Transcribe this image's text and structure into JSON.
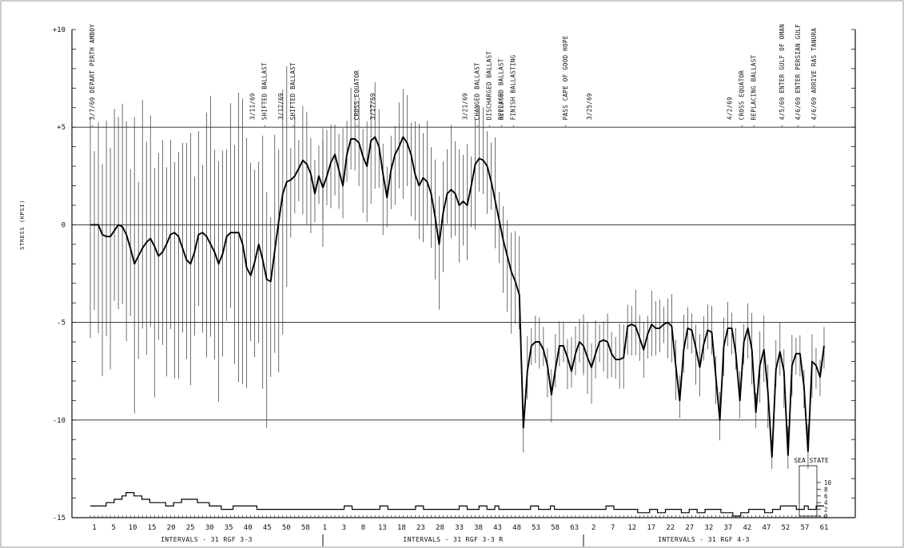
{
  "chart_data": {
    "type": "line",
    "title": "",
    "ylabel": "STRESS (KPSI)",
    "ylim": [
      -15,
      10
    ],
    "y_ticks": [
      {
        "value": 10,
        "label": "+10"
      },
      {
        "value": 5,
        "label": "+5"
      },
      {
        "value": 0,
        "label": "0"
      },
      {
        "value": -5,
        "label": "-5"
      },
      {
        "value": -10,
        "label": "-10"
      },
      {
        "value": -15,
        "label": "-15"
      }
    ],
    "reference_lines": [
      5,
      0,
      -5,
      -10
    ],
    "x_tick_labels": [
      "1",
      "5",
      "10",
      "15",
      "20",
      "25",
      "30",
      "35",
      "40",
      "45",
      "50",
      "58",
      "1",
      "3",
      "8",
      "13",
      "18",
      "23",
      "28",
      "33",
      "38",
      "43",
      "48",
      "53",
      "58",
      "63",
      "2",
      "7",
      "12",
      "17",
      "22",
      "27",
      "32",
      "37",
      "42",
      "47",
      "52",
      "57",
      "61"
    ],
    "x_sections": [
      {
        "label": "INTERVALS - 31 RGF 3-3",
        "start": 0,
        "end": 58
      },
      {
        "label": "INTERVALS - 31 RGF 3-3 R",
        "start": 58,
        "end": 123
      },
      {
        "label": "INTERVALS - 31 RGF 4-3",
        "start": 123,
        "end": 183
      }
    ],
    "series": [
      {
        "mean": [
          [
            0,
            0
          ],
          [
            1,
            0
          ],
          [
            2,
            0
          ],
          [
            3,
            -0.5
          ],
          [
            4,
            -0.6
          ],
          [
            5,
            -0.6
          ],
          [
            6,
            -0.3
          ],
          [
            7,
            0
          ],
          [
            8,
            -0.1
          ],
          [
            9,
            -0.5
          ],
          [
            10,
            -1.2
          ],
          [
            11,
            -2.0
          ],
          [
            12,
            -1.6
          ],
          [
            13,
            -1.2
          ],
          [
            14,
            -0.9
          ],
          [
            15,
            -0.7
          ],
          [
            16,
            -1.1
          ],
          [
            17,
            -1.6
          ],
          [
            18,
            -1.4
          ],
          [
            19,
            -1.0
          ],
          [
            20,
            -0.5
          ],
          [
            21,
            -0.4
          ],
          [
            22,
            -0.6
          ],
          [
            23,
            -1.2
          ],
          [
            24,
            -1.8
          ],
          [
            25,
            -2.0
          ],
          [
            26,
            -1.4
          ],
          [
            27,
            -0.5
          ],
          [
            28,
            -0.4
          ],
          [
            29,
            -0.6
          ],
          [
            30,
            -1.0
          ],
          [
            31,
            -1.4
          ],
          [
            32,
            -2.0
          ],
          [
            33,
            -1.5
          ],
          [
            34,
            -0.6
          ],
          [
            35,
            -0.4
          ],
          [
            36,
            -0.4
          ],
          [
            37,
            -0.4
          ],
          [
            38,
            -1.0
          ],
          [
            39,
            -2.2
          ],
          [
            40,
            -2.6
          ],
          [
            41,
            -1.9
          ],
          [
            42,
            -1.0
          ],
          [
            43,
            -1.8
          ],
          [
            44,
            -2.8
          ],
          [
            45,
            -2.9
          ],
          [
            46,
            -1.3
          ],
          [
            47,
            0.2
          ],
          [
            48,
            1.6
          ],
          [
            49,
            2.2
          ],
          [
            50,
            2.3
          ],
          [
            51,
            2.5
          ],
          [
            52,
            2.9
          ],
          [
            53,
            3.3
          ],
          [
            54,
            3.1
          ],
          [
            55,
            2.6
          ],
          [
            56,
            1.6
          ],
          [
            57,
            2.5
          ],
          [
            58,
            1.9
          ]
        ]
      },
      {
        "mean": [
          [
            58,
            1.9
          ],
          [
            59,
            2.5
          ],
          [
            60,
            3.2
          ],
          [
            61,
            3.6
          ],
          [
            62,
            2.8
          ],
          [
            63,
            2.0
          ],
          [
            64,
            3.6
          ],
          [
            65,
            4.4
          ],
          [
            66,
            4.4
          ],
          [
            67,
            4.2
          ],
          [
            68,
            3.5
          ],
          [
            69,
            3.0
          ],
          [
            70,
            4.3
          ],
          [
            71,
            4.5
          ],
          [
            72,
            4.0
          ],
          [
            73,
            2.6
          ],
          [
            74,
            1.4
          ],
          [
            75,
            2.8
          ],
          [
            76,
            3.6
          ],
          [
            77,
            4.0
          ],
          [
            78,
            4.5
          ],
          [
            79,
            4.2
          ],
          [
            80,
            3.6
          ],
          [
            81,
            2.6
          ],
          [
            82,
            2.0
          ],
          [
            83,
            2.4
          ],
          [
            84,
            2.2
          ],
          [
            85,
            1.6
          ],
          [
            86,
            0.4
          ],
          [
            87,
            -1.0
          ],
          [
            88,
            0.6
          ],
          [
            89,
            1.6
          ],
          [
            90,
            1.8
          ],
          [
            91,
            1.6
          ],
          [
            92,
            1.0
          ],
          [
            93,
            1.2
          ],
          [
            94,
            1.0
          ],
          [
            95,
            2.0
          ],
          [
            96,
            3.1
          ],
          [
            97,
            3.4
          ],
          [
            98,
            3.3
          ],
          [
            99,
            3.0
          ],
          [
            100,
            2.2
          ],
          [
            101,
            1.2
          ],
          [
            102,
            0.2
          ],
          [
            103,
            -0.8
          ],
          [
            104,
            -1.6
          ],
          [
            105,
            -2.4
          ],
          [
            106,
            -2.9
          ],
          [
            107,
            -3.6
          ],
          [
            108,
            -10.4
          ],
          [
            109,
            -7.5
          ],
          [
            110,
            -6.2
          ],
          [
            111,
            -6.0
          ],
          [
            112,
            -6.0
          ],
          [
            113,
            -6.4
          ],
          [
            114,
            -7.2
          ],
          [
            115,
            -8.7
          ],
          [
            116,
            -7.4
          ],
          [
            117,
            -6.2
          ],
          [
            118,
            -6.2
          ],
          [
            119,
            -6.8
          ],
          [
            120,
            -7.5
          ],
          [
            121,
            -6.6
          ],
          [
            122,
            -6.0
          ],
          [
            123,
            -6.2
          ]
        ]
      },
      {
        "mean": [
          [
            123,
            -6.2
          ],
          [
            124,
            -6.8
          ],
          [
            125,
            -7.3
          ],
          [
            126,
            -6.6
          ],
          [
            127,
            -6.0
          ],
          [
            128,
            -5.9
          ],
          [
            129,
            -6.0
          ],
          [
            130,
            -6.6
          ],
          [
            131,
            -6.9
          ],
          [
            132,
            -6.9
          ],
          [
            133,
            -6.8
          ],
          [
            134,
            -5.2
          ],
          [
            135,
            -5.1
          ],
          [
            136,
            -5.2
          ],
          [
            137,
            -5.8
          ],
          [
            138,
            -6.4
          ],
          [
            139,
            -5.6
          ],
          [
            140,
            -5.1
          ],
          [
            141,
            -5.3
          ],
          [
            142,
            -5.3
          ],
          [
            143,
            -5.1
          ],
          [
            144,
            -5.0
          ],
          [
            145,
            -5.2
          ],
          [
            146,
            -7.2
          ],
          [
            147,
            -9.0
          ],
          [
            148,
            -6.4
          ],
          [
            149,
            -5.3
          ],
          [
            150,
            -5.4
          ],
          [
            151,
            -6.3
          ],
          [
            152,
            -7.3
          ],
          [
            153,
            -6.1
          ],
          [
            154,
            -5.4
          ],
          [
            155,
            -5.5
          ],
          [
            156,
            -7.8
          ],
          [
            157,
            -10.0
          ],
          [
            158,
            -6.2
          ],
          [
            159,
            -5.3
          ],
          [
            160,
            -5.3
          ],
          [
            161,
            -6.6
          ],
          [
            162,
            -9.0
          ],
          [
            163,
            -6.0
          ],
          [
            164,
            -5.3
          ],
          [
            165,
            -6.4
          ],
          [
            166,
            -9.6
          ],
          [
            167,
            -7.2
          ],
          [
            168,
            -6.4
          ],
          [
            169,
            -8.6
          ],
          [
            170,
            -11.9
          ],
          [
            171,
            -7.4
          ],
          [
            172,
            -6.5
          ],
          [
            173,
            -7.5
          ],
          [
            174,
            -11.8
          ],
          [
            175,
            -7.2
          ],
          [
            176,
            -6.6
          ],
          [
            177,
            -6.6
          ],
          [
            178,
            -8.3
          ],
          [
            179,
            -11.6
          ],
          [
            180,
            -7.0
          ],
          [
            181,
            -7.2
          ],
          [
            182,
            -7.8
          ],
          [
            183,
            -6.2
          ]
        ]
      }
    ],
    "annotations": [
      {
        "x": 1,
        "text": "- 3/7/69  DEPART PERTH AMBOY"
      },
      {
        "x": 44,
        "text": "- SHIFTED BALLAST"
      },
      {
        "x": 41,
        "text": "3/11/69"
      },
      {
        "x": 51,
        "text": "- SHIFTED BALLAST"
      },
      {
        "x": 48,
        "text": "3/12/69"
      },
      {
        "x": 67,
        "text": "- CROSS EQUATOR"
      },
      {
        "x": 71,
        "text": "3/17/69"
      },
      {
        "x": 94,
        "text": "3/21/69"
      },
      {
        "x": 97,
        "text": "- CHANGED BALLAST"
      },
      {
        "x": 100,
        "text": "- DISCHARGED BALLAST"
      },
      {
        "x": 103,
        "text": "- REPLACED BALLAST"
      },
      {
        "x": 106,
        "text": "- FINISH BALLASTING"
      },
      {
        "x": 103,
        "text": "3/22/69"
      },
      {
        "x": 119,
        "text": "- PASS CAPE OF GOOD HOPE"
      },
      {
        "x": 125,
        "text": "3/25/69"
      },
      {
        "x": 160,
        "text": "4/2/69"
      },
      {
        "x": 163,
        "text": "- CROSS EQUATOR"
      },
      {
        "x": 166,
        "text": "- REPLACING BALLAST"
      },
      {
        "x": 173,
        "text": "- 4/5/69   ENTER GULF OF OMAN"
      },
      {
        "x": 177,
        "text": "- 4/6/69   ENTER PERSIAN GULF"
      },
      {
        "x": 181,
        "text": "- 4/6/69 ARRIVE RAS TANURA"
      }
    ],
    "sea_state": {
      "label": "SEA STATE",
      "ticks": [
        {
          "value": 0,
          "label": "0"
        },
        {
          "value": 2,
          "label": "2"
        },
        {
          "value": 4,
          "label": "4"
        },
        {
          "value": 6,
          "label": "6"
        },
        {
          "value": 8,
          "label": "8"
        },
        {
          "value": 10,
          "label": "10"
        }
      ],
      "values": [
        3,
        3,
        3,
        3,
        4,
        4,
        5,
        5,
        6,
        7,
        7,
        6,
        6,
        5,
        5,
        4,
        4,
        4,
        4,
        3,
        3,
        4,
        4,
        5,
        5,
        5,
        5,
        4,
        4,
        4,
        3,
        3,
        3,
        2,
        2,
        2,
        3,
        3,
        3,
        3,
        3,
        3,
        2,
        2,
        2,
        2,
        2,
        2,
        2,
        2,
        2,
        2,
        2,
        2,
        2,
        2,
        2,
        2,
        2,
        2,
        2,
        2,
        2,
        2,
        3,
        3,
        2,
        2,
        2,
        2,
        2,
        2,
        2,
        3,
        3,
        2,
        2,
        2,
        2,
        2,
        2,
        2,
        3,
        3,
        2,
        2,
        2,
        2,
        2,
        2,
        2,
        2,
        2,
        3,
        3,
        2,
        2,
        2,
        3,
        3,
        2,
        2,
        3,
        2,
        2,
        2,
        2,
        2,
        2,
        2,
        2,
        3,
        3,
        2,
        2,
        2,
        3,
        2,
        2,
        2,
        2,
        2,
        2,
        2,
        2,
        2,
        2,
        2,
        2,
        2,
        3,
        3,
        2,
        2,
        2,
        2,
        2,
        2,
        1,
        1,
        1,
        2,
        2,
        1,
        1,
        2,
        2,
        2,
        2,
        1,
        1,
        2,
        2,
        1,
        1,
        2,
        2,
        2,
        2,
        1,
        1,
        1,
        0,
        0,
        1,
        1,
        2,
        2,
        2,
        2,
        1,
        1,
        2,
        2,
        3,
        3,
        3,
        3,
        2,
        2,
        3,
        2,
        2,
        3,
        3
      ]
    }
  }
}
